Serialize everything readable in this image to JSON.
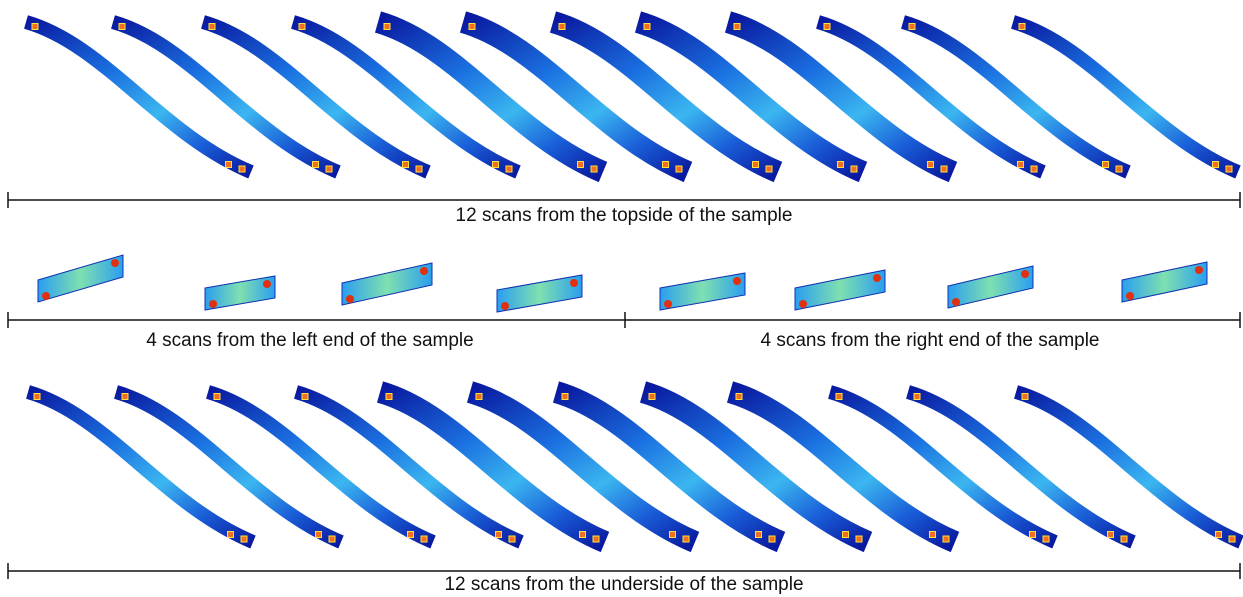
{
  "captions": {
    "top": "12 scans from the topside of the sample",
    "left": "4 scans from the left end of the sample",
    "right": "4 scans from the right end of the sample",
    "bottom": "12 scans from the underside of the sample"
  }
}
